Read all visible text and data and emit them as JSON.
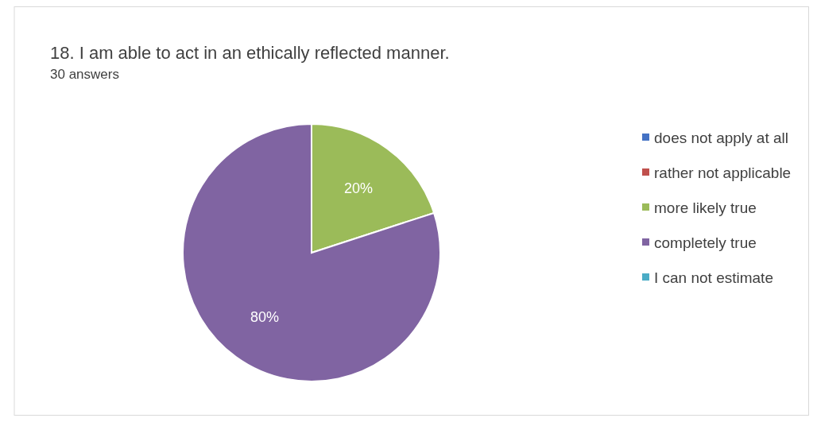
{
  "chart_data": {
    "type": "pie",
    "title": "18. I am able to act in an ethically reflected manner.",
    "subtitle": "30 answers",
    "categories": [
      "does not apply at all",
      "rather not applicable",
      "more likely true",
      "completely true",
      "I can not estimate"
    ],
    "values": [
      0,
      0,
      20,
      80,
      0
    ],
    "colors": [
      "#4472c4",
      "#c0504d",
      "#9bbb59",
      "#8064a2",
      "#4bacc6"
    ],
    "value_labels": [
      null,
      null,
      "20%",
      "80%",
      null
    ],
    "legend": "right"
  }
}
